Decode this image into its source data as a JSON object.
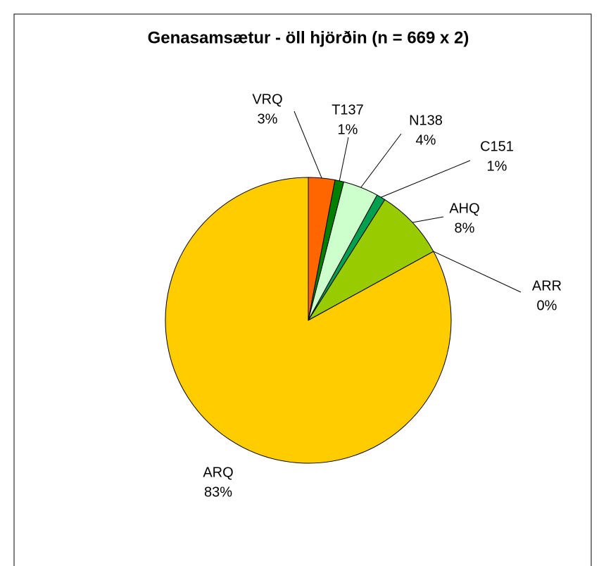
{
  "chart_data": {
    "type": "pie",
    "title": "Genasamsætur - öll hjörðin (n = 669 x 2)",
    "categories": [
      "VRQ",
      "T137",
      "N138",
      "C151",
      "AHQ",
      "ARR",
      "ARQ"
    ],
    "values": [
      3,
      1,
      4,
      1,
      8,
      0,
      83
    ],
    "value_labels": [
      "3%",
      "1%",
      "4%",
      "1%",
      "8%",
      "0%",
      "83%"
    ],
    "colors": [
      "#ff6600",
      "#008000",
      "#ccffcc",
      "#00a050",
      "#99cc00",
      "#3366ff",
      "#ffcc00"
    ]
  }
}
